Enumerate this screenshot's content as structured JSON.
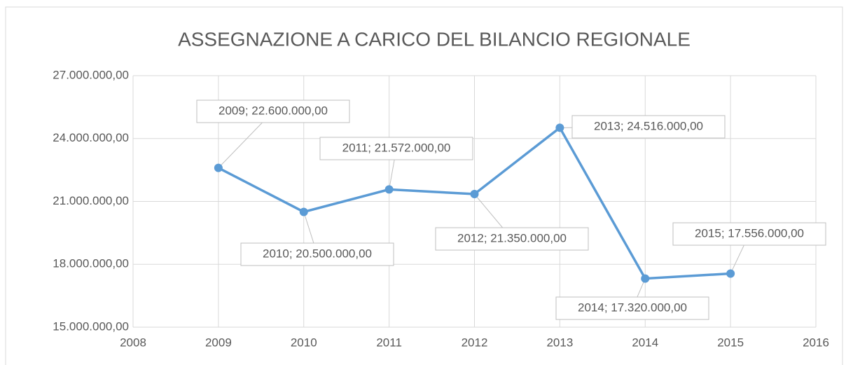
{
  "chart_data": {
    "type": "line",
    "title": "ASSEGNAZIONE A CARICO DEL BILANCIO REGIONALE",
    "x": [
      2009,
      2010,
      2011,
      2012,
      2013,
      2014,
      2015
    ],
    "values": [
      22600000,
      20500000,
      21572000,
      21350000,
      24516000,
      17320000,
      17556000
    ],
    "value_labels": [
      "2009; 22.600.000,00",
      "2010; 20.500.000,00",
      "2011; 21.572.000,00",
      "2012; 21.350.000,00",
      "2013; 24.516.000,00",
      "2014; 17.320.000,00",
      "2015; 17.556.000,00"
    ],
    "color": "#5b9bd5",
    "xlim": [
      2008,
      2016
    ],
    "xticks": [
      2008,
      2009,
      2010,
      2011,
      2012,
      2013,
      2014,
      2015,
      2016
    ],
    "ylim": [
      15000000,
      27000000
    ],
    "yticks": [
      {
        "value": 15000000,
        "label": "15.000.000,00"
      },
      {
        "value": 18000000,
        "label": "18.000.000,00"
      },
      {
        "value": 21000000,
        "label": "21.000.000,00"
      },
      {
        "value": 24000000,
        "label": "24.000.000,00"
      },
      {
        "value": 27000000,
        "label": "27.000.000,00"
      }
    ],
    "grid": true
  }
}
